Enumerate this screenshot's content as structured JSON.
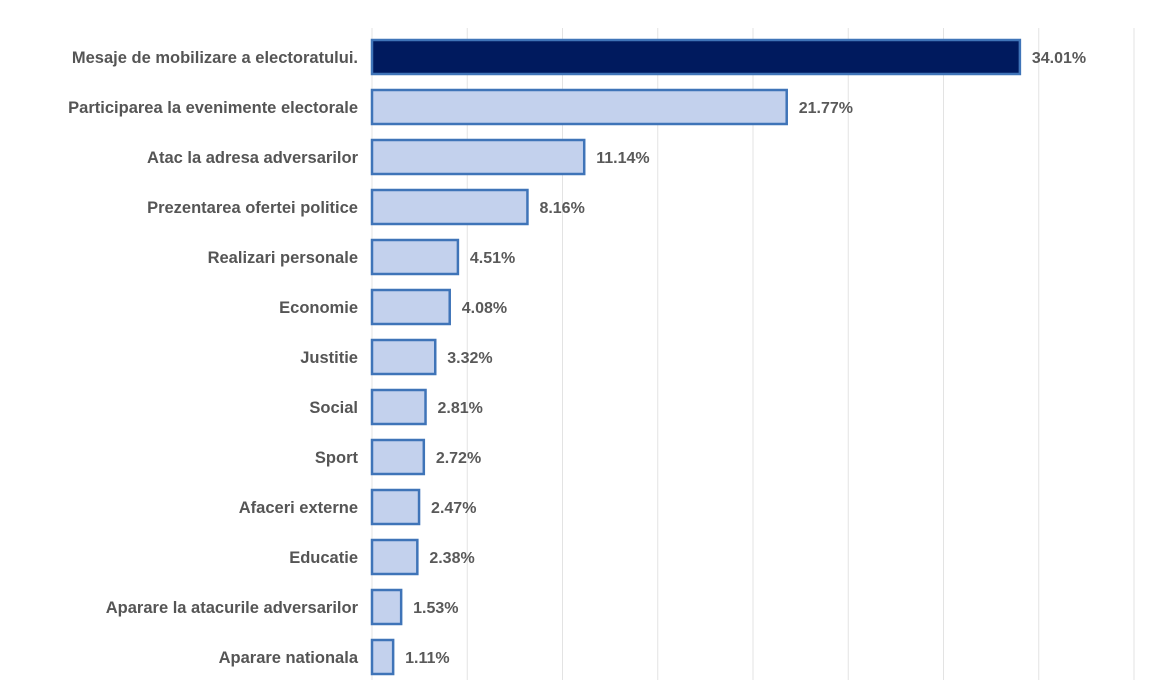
{
  "chart_data": {
    "type": "bar",
    "orientation": "horizontal",
    "categories": [
      "Mesaje de mobilizare a electoratului.",
      "Participarea la evenimente electorale",
      "Atac la adresa adversarilor",
      "Prezentarea ofertei politice",
      "Realizari personale",
      "Economie",
      "Justitie",
      "Social",
      "Sport",
      "Afaceri externe",
      "Educatie",
      "Aparare la atacurile adversarilor",
      "Aparare nationala"
    ],
    "values": [
      34.01,
      21.77,
      11.14,
      8.16,
      4.51,
      4.08,
      3.32,
      2.81,
      2.72,
      2.47,
      2.38,
      1.53,
      1.11
    ],
    "value_labels": [
      "34.01%",
      "21.77%",
      "11.14%",
      "8.16%",
      "4.51%",
      "4.08%",
      "3.32%",
      "2.81%",
      "2.72%",
      "2.47%",
      "2.38%",
      "1.53%",
      "1.11%"
    ],
    "title": "",
    "xlabel": "",
    "ylabel": "",
    "xlim": [
      0,
      40
    ],
    "grid": true,
    "legend": "none",
    "colors": {
      "highlight_fill": "#001a5e",
      "bar_fill": "#c3d1ed",
      "bar_border": "#3f74b8",
      "highlight_border": "#3f74b8"
    }
  }
}
